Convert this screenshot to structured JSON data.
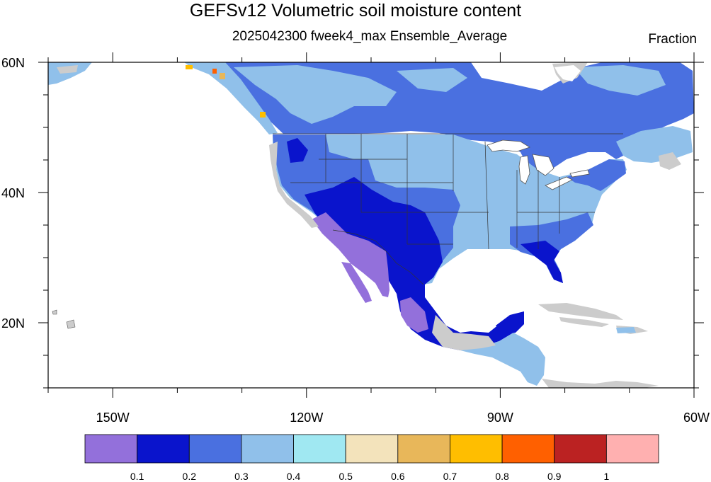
{
  "title": "GEFSv12 Volumetric soil moisture content",
  "subtitle": "2025042300 fweek4_max Ensemble_Average",
  "units": "Fraction",
  "map": {
    "lon_range": [
      -160,
      -60
    ],
    "lat_range": [
      10,
      60
    ],
    "x_ticks": [
      {
        "lon": -150,
        "label": "150W"
      },
      {
        "lon": -120,
        "label": "120W"
      },
      {
        "lon": -90,
        "label": "90W"
      },
      {
        "lon": -60,
        "label": "60W"
      }
    ],
    "y_ticks": [
      {
        "lat": 60,
        "label": "60N"
      },
      {
        "lat": 40,
        "label": "40N"
      },
      {
        "lat": 20,
        "label": "20N"
      }
    ]
  },
  "colorbar": {
    "colors": [
      "#9370db",
      "#0a14cc",
      "#4a70e0",
      "#90c0ea",
      "#a0e8f2",
      "#f3e3bb",
      "#e8b75a",
      "#ffbe00",
      "#ff6000",
      "#bb2222",
      "#ffb0b0"
    ],
    "labels": [
      "0.1",
      "0.2",
      "0.3",
      "0.4",
      "0.5",
      "0.6",
      "0.7",
      "0.8",
      "0.9",
      "1"
    ]
  },
  "legend_colors": {
    "missing": "#cccccc",
    "coast": "#555555"
  }
}
